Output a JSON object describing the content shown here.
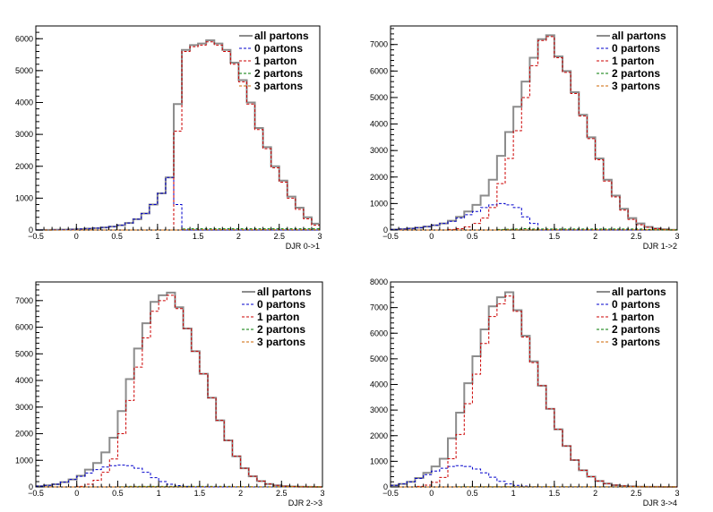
{
  "colors": {
    "all": "#8c8c8c",
    "p0": "#0000cc",
    "p1": "#cc0000",
    "p2": "#007a00",
    "p3": "#cc6600",
    "axis": "#000000"
  },
  "legend_entries": [
    "all partons",
    "0 partons",
    "1 parton",
    "2 partons",
    "3 partons"
  ],
  "chart_data": [
    {
      "type": "line",
      "style": "step-histogram",
      "xlabel": "DJR 0->1",
      "xlim": [
        -0.5,
        3
      ],
      "ylim": [
        0,
        6400
      ],
      "xticks": [
        -0.5,
        0,
        0.5,
        1,
        1.5,
        2,
        2.5,
        3
      ],
      "xtick_labels": [
        "−0.5",
        "0",
        "0.5",
        "1",
        "1.5",
        "2",
        "2.5",
        "3"
      ],
      "yticks": [
        0,
        1000,
        2000,
        3000,
        4000,
        5000,
        6000
      ],
      "ytick_labels": [
        "0",
        "1000",
        "2000",
        "3000",
        "4000",
        "5000",
        "6000"
      ],
      "legend": "top-right",
      "bin_width": 0.1,
      "x": [
        -0.45,
        -0.35,
        -0.25,
        -0.15,
        -0.05,
        0.05,
        0.15,
        0.25,
        0.35,
        0.45,
        0.55,
        0.65,
        0.75,
        0.85,
        0.95,
        1.05,
        1.15,
        1.25,
        1.35,
        1.45,
        1.55,
        1.65,
        1.75,
        1.85,
        1.95,
        2.05,
        2.15,
        2.25,
        2.35,
        2.45,
        2.55,
        2.65,
        2.75,
        2.85,
        2.95
      ],
      "series": [
        {
          "name": "all partons",
          "values": [
            2,
            5,
            10,
            15,
            20,
            30,
            45,
            60,
            80,
            110,
            150,
            220,
            340,
            520,
            800,
            1150,
            1650,
            3950,
            5650,
            5800,
            5850,
            5950,
            5850,
            5650,
            5250,
            4700,
            4000,
            3200,
            2600,
            2000,
            1550,
            1050,
            700,
            400,
            200
          ]
        },
        {
          "name": "0 partons",
          "values": [
            2,
            5,
            10,
            15,
            20,
            30,
            45,
            60,
            80,
            110,
            150,
            220,
            340,
            520,
            800,
            1150,
            1650,
            800,
            0,
            0,
            0,
            0,
            0,
            0,
            0,
            0,
            0,
            0,
            0,
            0,
            0,
            0,
            0,
            0,
            0
          ]
        },
        {
          "name": "1 parton",
          "values": [
            0,
            0,
            0,
            0,
            0,
            0,
            0,
            0,
            0,
            0,
            0,
            0,
            0,
            0,
            0,
            0,
            0,
            3100,
            5600,
            5750,
            5800,
            5900,
            5800,
            5600,
            5200,
            4650,
            3950,
            3150,
            2550,
            1950,
            1500,
            1000,
            650,
            350,
            150
          ]
        },
        {
          "name": "2 partons",
          "values": [
            0,
            0,
            0,
            0,
            0,
            0,
            0,
            0,
            0,
            0,
            0,
            0,
            0,
            0,
            0,
            0,
            0,
            0,
            30,
            40,
            40,
            40,
            40,
            40,
            40,
            40,
            40,
            40,
            40,
            40,
            40,
            40,
            40,
            40,
            40
          ]
        },
        {
          "name": "3 partons",
          "values": [
            0,
            0,
            0,
            0,
            0,
            0,
            0,
            0,
            0,
            0,
            0,
            0,
            0,
            0,
            0,
            0,
            0,
            0,
            10,
            10,
            10,
            10,
            10,
            10,
            10,
            10,
            10,
            10,
            10,
            10,
            10,
            10,
            10,
            10,
            10
          ]
        }
      ]
    },
    {
      "type": "line",
      "style": "step-histogram",
      "xlabel": "DJR 1->2",
      "xlim": [
        -0.5,
        3
      ],
      "ylim": [
        0,
        7700
      ],
      "xticks": [
        -0.5,
        0,
        0.5,
        1,
        1.5,
        2,
        2.5,
        3
      ],
      "xtick_labels": [
        "−0.5",
        "0",
        "0.5",
        "1",
        "1.5",
        "2",
        "2.5",
        "3"
      ],
      "yticks": [
        0,
        1000,
        2000,
        3000,
        4000,
        5000,
        6000,
        7000
      ],
      "ytick_labels": [
        "0",
        "1000",
        "2000",
        "3000",
        "4000",
        "5000",
        "6000",
        "7000"
      ],
      "legend": "top-right",
      "bin_width": 0.1,
      "x": [
        -0.45,
        -0.35,
        -0.25,
        -0.15,
        -0.05,
        0.05,
        0.15,
        0.25,
        0.35,
        0.45,
        0.55,
        0.65,
        0.75,
        0.85,
        0.95,
        1.05,
        1.15,
        1.25,
        1.35,
        1.45,
        1.55,
        1.65,
        1.75,
        1.85,
        1.95,
        2.05,
        2.15,
        2.25,
        2.35,
        2.45,
        2.55,
        2.65,
        2.75,
        2.85,
        2.95
      ],
      "series": [
        {
          "name": "all partons",
          "values": [
            20,
            40,
            60,
            90,
            130,
            180,
            250,
            350,
            500,
            700,
            950,
            1300,
            1900,
            2800,
            3700,
            4650,
            5600,
            6500,
            7200,
            7350,
            6550,
            6000,
            5200,
            4350,
            3500,
            2700,
            1900,
            1300,
            800,
            450,
            250,
            120,
            60,
            30,
            10
          ]
        },
        {
          "name": "0 partons",
          "values": [
            20,
            40,
            60,
            90,
            130,
            180,
            250,
            330,
            450,
            580,
            700,
            850,
            950,
            1000,
            950,
            850,
            500,
            250,
            0,
            0,
            0,
            0,
            0,
            0,
            0,
            0,
            0,
            0,
            0,
            0,
            0,
            0,
            0,
            0,
            0
          ]
        },
        {
          "name": "1 parton",
          "values": [
            0,
            0,
            0,
            0,
            0,
            0,
            0,
            20,
            50,
            120,
            250,
            450,
            850,
            1750,
            2700,
            3750,
            5000,
            6200,
            7150,
            7300,
            6500,
            5950,
            5150,
            4300,
            3450,
            2650,
            1850,
            1250,
            750,
            400,
            200,
            100,
            50,
            20,
            5
          ]
        },
        {
          "name": "2 partons",
          "values": [
            0,
            0,
            0,
            0,
            0,
            0,
            0,
            0,
            0,
            0,
            0,
            0,
            0,
            20,
            30,
            40,
            50,
            40,
            40,
            40,
            40,
            40,
            40,
            40,
            40,
            40,
            40,
            40,
            40,
            40,
            40,
            20,
            10,
            5,
            5
          ]
        },
        {
          "name": "3 partons",
          "values": [
            0,
            0,
            0,
            0,
            0,
            0,
            0,
            0,
            0,
            0,
            0,
            0,
            0,
            0,
            10,
            10,
            10,
            10,
            10,
            10,
            10,
            10,
            10,
            10,
            10,
            10,
            10,
            10,
            10,
            10,
            10,
            10,
            5,
            5,
            5
          ]
        }
      ]
    },
    {
      "type": "line",
      "style": "step-histogram",
      "xlabel": "DJR 2->3",
      "xlim": [
        -0.5,
        3
      ],
      "ylim": [
        0,
        7700
      ],
      "xticks": [
        -0.5,
        0,
        0.5,
        1,
        1.5,
        2,
        2.5,
        3
      ],
      "xtick_labels": [
        "−0.5",
        "0",
        "0.5",
        "1",
        "1.5",
        "2",
        "2.5",
        "3"
      ],
      "yticks": [
        0,
        1000,
        2000,
        3000,
        4000,
        5000,
        6000,
        7000
      ],
      "ytick_labels": [
        "0",
        "1000",
        "2000",
        "3000",
        "4000",
        "5000",
        "6000",
        "7000"
      ],
      "legend": "top-right",
      "bin_width": 0.1,
      "x": [
        -0.45,
        -0.35,
        -0.25,
        -0.15,
        -0.05,
        0.05,
        0.15,
        0.25,
        0.35,
        0.45,
        0.55,
        0.65,
        0.75,
        0.85,
        0.95,
        1.05,
        1.15,
        1.25,
        1.35,
        1.45,
        1.55,
        1.65,
        1.75,
        1.85,
        1.95,
        2.05,
        2.15,
        2.25,
        2.35,
        2.45,
        2.55,
        2.65,
        2.75,
        2.85,
        2.95
      ],
      "series": [
        {
          "name": "all partons",
          "values": [
            30,
            60,
            100,
            180,
            280,
            420,
            650,
            900,
            1300,
            1850,
            2850,
            4050,
            5200,
            6150,
            6950,
            7200,
            7300,
            6750,
            5950,
            5100,
            4250,
            3350,
            2500,
            1750,
            1150,
            700,
            400,
            220,
            110,
            60,
            30,
            15,
            10,
            5,
            2
          ]
        },
        {
          "name": "0 partons",
          "values": [
            30,
            60,
            100,
            180,
            280,
            400,
            520,
            650,
            750,
            800,
            820,
            800,
            700,
            550,
            350,
            200,
            100,
            50,
            20,
            0,
            0,
            0,
            0,
            0,
            0,
            0,
            0,
            0,
            0,
            0,
            0,
            0,
            0,
            0,
            0
          ]
        },
        {
          "name": "1 parton",
          "values": [
            0,
            0,
            0,
            0,
            0,
            20,
            100,
            250,
            550,
            1050,
            2000,
            3250,
            4500,
            5600,
            6600,
            7000,
            7200,
            6700,
            5950,
            5100,
            4250,
            3350,
            2500,
            1750,
            1150,
            700,
            400,
            220,
            110,
            60,
            30,
            15,
            10,
            5,
            2
          ]
        },
        {
          "name": "2 partons",
          "values": [
            0,
            0,
            0,
            0,
            0,
            0,
            0,
            0,
            0,
            0,
            10,
            20,
            20,
            20,
            20,
            20,
            20,
            20,
            20,
            20,
            20,
            20,
            20,
            20,
            10,
            10,
            10,
            5,
            5,
            5,
            5,
            5,
            5,
            5,
            5
          ]
        },
        {
          "name": "3 partons",
          "values": [
            0,
            0,
            0,
            0,
            0,
            0,
            0,
            0,
            0,
            0,
            0,
            5,
            5,
            5,
            5,
            5,
            5,
            5,
            5,
            5,
            5,
            5,
            5,
            5,
            5,
            5,
            5,
            5,
            5,
            5,
            5,
            5,
            5,
            5,
            5
          ]
        }
      ]
    },
    {
      "type": "line",
      "style": "step-histogram",
      "xlabel": "DJR 3->4",
      "xlim": [
        -0.5,
        3
      ],
      "ylim": [
        0,
        8000
      ],
      "xticks": [
        -0.5,
        0,
        0.5,
        1,
        1.5,
        2,
        2.5,
        3
      ],
      "xtick_labels": [
        "−0.5",
        "0",
        "0.5",
        "1",
        "1.5",
        "2",
        "2.5",
        "3"
      ],
      "yticks": [
        0,
        1000,
        2000,
        3000,
        4000,
        5000,
        6000,
        7000,
        8000
      ],
      "ytick_labels": [
        "0",
        "1000",
        "2000",
        "3000",
        "4000",
        "5000",
        "6000",
        "7000",
        "8000"
      ],
      "legend": "top-right",
      "bin_width": 0.1,
      "x": [
        -0.45,
        -0.35,
        -0.25,
        -0.15,
        -0.05,
        0.05,
        0.15,
        0.25,
        0.35,
        0.45,
        0.55,
        0.65,
        0.75,
        0.85,
        0.95,
        1.05,
        1.15,
        1.25,
        1.35,
        1.45,
        1.55,
        1.65,
        1.75,
        1.85,
        1.95,
        2.05,
        2.15,
        2.25,
        2.35,
        2.45,
        2.55,
        2.65,
        2.75,
        2.85,
        2.95
      ],
      "series": [
        {
          "name": "all partons",
          "values": [
            60,
            120,
            200,
            350,
            550,
            800,
            1100,
            1900,
            2900,
            4050,
            5100,
            6150,
            7050,
            7400,
            7600,
            6900,
            5900,
            4900,
            3950,
            3050,
            2250,
            1600,
            1050,
            650,
            400,
            230,
            130,
            70,
            40,
            20,
            10,
            5,
            3,
            2,
            1
          ]
        },
        {
          "name": "0 partons",
          "values": [
            60,
            120,
            200,
            330,
            480,
            620,
            730,
            800,
            830,
            800,
            700,
            550,
            380,
            220,
            120,
            60,
            30,
            10,
            0,
            0,
            0,
            0,
            0,
            0,
            0,
            0,
            0,
            0,
            0,
            0,
            0,
            0,
            0,
            0,
            0
          ]
        },
        {
          "name": "1 parton",
          "values": [
            0,
            0,
            0,
            20,
            70,
            180,
            370,
            1100,
            2050,
            3250,
            4400,
            5600,
            6650,
            7150,
            7450,
            6850,
            5850,
            4850,
            3950,
            3050,
            2250,
            1600,
            1050,
            650,
            400,
            230,
            130,
            70,
            40,
            20,
            10,
            5,
            3,
            2,
            1
          ]
        },
        {
          "name": "2 partons",
          "values": [
            0,
            0,
            0,
            0,
            0,
            0,
            0,
            0,
            10,
            10,
            10,
            10,
            10,
            10,
            10,
            10,
            10,
            10,
            10,
            10,
            10,
            10,
            10,
            5,
            5,
            5,
            5,
            5,
            5,
            5,
            5,
            5,
            5,
            5,
            5
          ]
        },
        {
          "name": "3 partons",
          "values": [
            0,
            0,
            0,
            0,
            0,
            0,
            0,
            0,
            0,
            0,
            5,
            5,
            5,
            5,
            5,
            5,
            5,
            5,
            5,
            5,
            5,
            5,
            5,
            5,
            5,
            5,
            5,
            5,
            5,
            5,
            5,
            5,
            5,
            5,
            5
          ]
        }
      ]
    }
  ]
}
